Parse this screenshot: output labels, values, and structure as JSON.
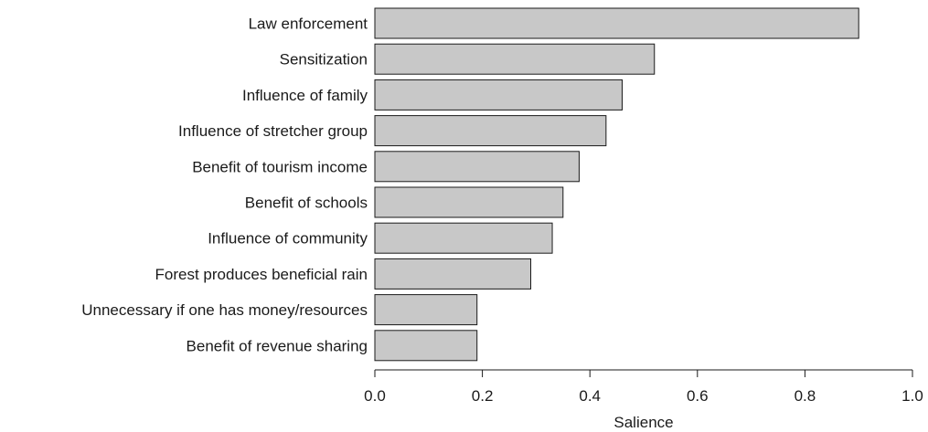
{
  "chart_data": {
    "type": "bar",
    "orientation": "horizontal",
    "title": "",
    "xlabel": "Salience",
    "ylabel": "",
    "xlim": [
      0,
      1.0
    ],
    "xticks": [
      "0.0",
      "0.2",
      "0.4",
      "0.6",
      "0.8",
      "1.0"
    ],
    "tick_values": [
      0.0,
      0.2,
      0.4,
      0.6,
      0.8,
      1.0
    ],
    "categories": [
      "Law enforcement",
      "Sensitization",
      "Influence of family",
      "Influence of stretcher group",
      "Benefit of tourism income",
      "Benefit of schools",
      "Influence of community",
      "Forest produces beneficial rain",
      "Unnecessary if one has money/resources",
      "Benefit of revenue sharing"
    ],
    "values": [
      0.9,
      0.52,
      0.46,
      0.43,
      0.38,
      0.35,
      0.33,
      0.29,
      0.19,
      0.19
    ],
    "grid": false,
    "legend": "none",
    "colors": {
      "bar_fill": "#c8c8c8",
      "bar_stroke": "#1a1a1a"
    }
  }
}
